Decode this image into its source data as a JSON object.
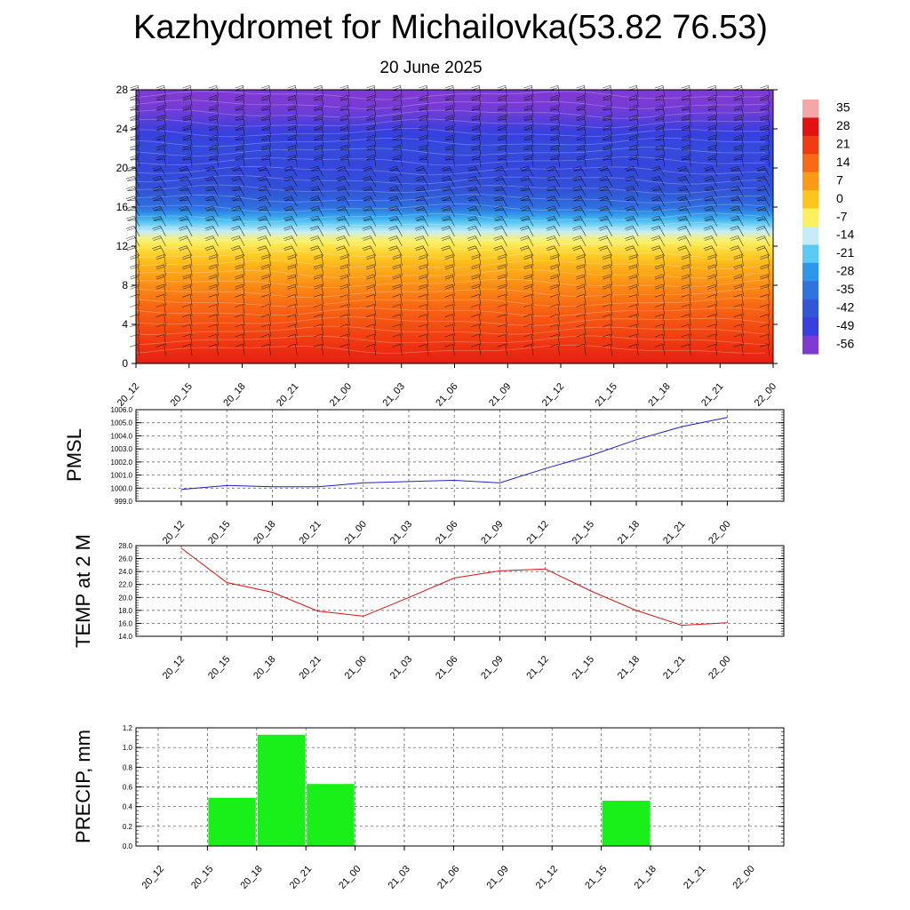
{
  "title": "Kazhydromet for Michailovka(53.82 76.53)",
  "subtitle": "20 June 2025",
  "time_labels": [
    "20_12",
    "20_15",
    "20_18",
    "20_21",
    "21_00",
    "21_03",
    "21_06",
    "21_09",
    "21_12",
    "21_15",
    "21_18",
    "21_21",
    "22_00"
  ],
  "chart_data": [
    {
      "type": "heatmap",
      "name": "temperature-wind-cross-section",
      "x": [
        "20_12",
        "20_15",
        "20_18",
        "20_21",
        "21_00",
        "21_03",
        "21_06",
        "21_09",
        "21_12",
        "21_15",
        "21_18",
        "21_21",
        "22_00"
      ],
      "y_ticks": [
        0,
        4,
        8,
        12,
        16,
        20,
        24,
        28
      ],
      "ylim": [
        0,
        28
      ],
      "colorbar_labels": [
        "35",
        "28",
        "21",
        "14",
        "7",
        "0",
        "-7",
        "-14",
        "-21",
        "-28",
        "-35",
        "-42",
        "-49",
        "-56"
      ],
      "colorbar_colors": [
        "#f4a7a7",
        "#e21212",
        "#f03c12",
        "#f86a14",
        "#fb9a17",
        "#fdc51e",
        "#fdf05e",
        "#c7ecf7",
        "#5ccaf2",
        "#2e97e9",
        "#2f73df",
        "#3157d6",
        "#3740de",
        "#7d3bd4"
      ],
      "temperature_profile": [
        {
          "level": 0,
          "value": 26
        },
        {
          "level": 2,
          "value": 22
        },
        {
          "level": 4,
          "value": 18
        },
        {
          "level": 6,
          "value": 14
        },
        {
          "level": 8,
          "value": 9
        },
        {
          "level": 10,
          "value": 3
        },
        {
          "level": 12,
          "value": -5
        },
        {
          "level": 13,
          "value": -10
        },
        {
          "level": 14,
          "value": -18
        },
        {
          "level": 15,
          "value": -26
        },
        {
          "level": 16,
          "value": -36
        },
        {
          "level": 18,
          "value": -44
        },
        {
          "level": 20,
          "value": -47
        },
        {
          "level": 22,
          "value": -46
        },
        {
          "level": 24,
          "value": -50
        },
        {
          "level": 26,
          "value": -55
        },
        {
          "level": 28,
          "value": -57
        }
      ],
      "grid": false
    },
    {
      "type": "line",
      "ylabel": "PMSL",
      "x": [
        "20_12",
        "20_15",
        "20_18",
        "20_21",
        "21_00",
        "21_03",
        "21_06",
        "21_09",
        "21_12",
        "21_15",
        "21_18",
        "21_21",
        "22_00"
      ],
      "y_ticks": [
        "999.0",
        "1000.0",
        "1001.0",
        "1002.0",
        "1003.0",
        "1004.0",
        "1005.0",
        "1006.0"
      ],
      "ylim": [
        999,
        1006
      ],
      "series": [
        {
          "values": [
            999.9,
            1000.2,
            1000.1,
            1000.1,
            1000.4,
            1000.5,
            1000.6,
            1000.4,
            1001.5,
            1002.5,
            1003.7,
            1004.7,
            1005.4
          ],
          "color": "#1f1fd0"
        }
      ],
      "grid": true
    },
    {
      "type": "line",
      "ylabel": "TEMP at 2 M",
      "x": [
        "20_12",
        "20_15",
        "20_18",
        "20_21",
        "21_00",
        "21_03",
        "21_06",
        "21_09",
        "21_12",
        "21_15",
        "21_18",
        "21_21",
        "22_00"
      ],
      "y_ticks": [
        "14.0",
        "16.0",
        "18.0",
        "20.0",
        "22.0",
        "24.0",
        "26.0",
        "28.0"
      ],
      "ylim": [
        14,
        28
      ],
      "series": [
        {
          "values": [
            27.6,
            22.3,
            20.8,
            17.9,
            17.1,
            20.0,
            23.0,
            24.1,
            24.4,
            21.0,
            18.0,
            15.7,
            16.1
          ],
          "color": "#e01010"
        }
      ],
      "grid": true
    },
    {
      "type": "bar",
      "ylabel": "PRECIP, mm",
      "categories": [
        "20_12",
        "20_15",
        "20_18",
        "20_21",
        "21_00",
        "21_03",
        "21_06",
        "21_09",
        "21_12",
        "21_15",
        "21_18",
        "21_21",
        "22_00"
      ],
      "values": [
        0,
        0.49,
        1.13,
        0.63,
        0,
        0,
        0,
        0,
        0,
        0.46,
        0,
        0,
        0
      ],
      "y_ticks": [
        "0.0",
        "0.2",
        "0.4",
        "0.6",
        "0.8",
        "1.0",
        "1.2"
      ],
      "ylim": [
        0,
        1.2
      ],
      "color": "#19f019",
      "grid": true
    }
  ]
}
